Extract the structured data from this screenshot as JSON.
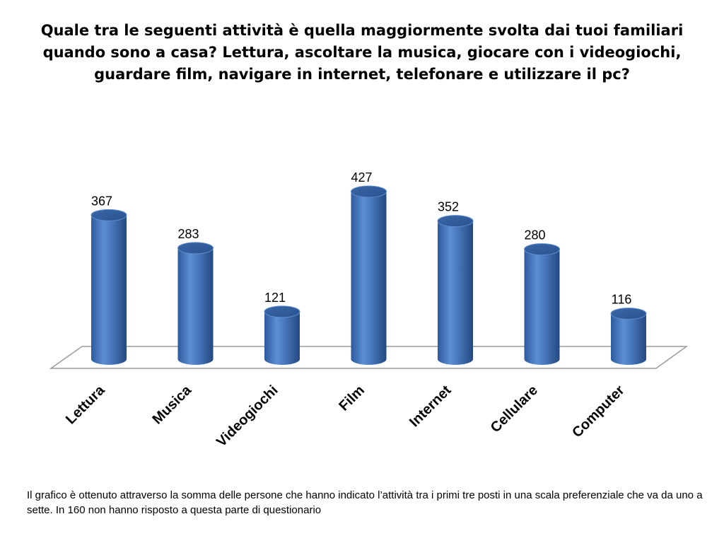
{
  "chart_data": {
    "type": "bar",
    "title": "Quale tra le seguenti attività è quella maggiormente svolta dai tuoi familiari quando sono a casa? Lettura, ascoltare la musica, giocare con i videogiochi, guardare film, navigare in internet, telefonare e utilizzare il pc?",
    "categories": [
      "Lettura",
      "Musica",
      "Videogiochi",
      "Film",
      "Internet",
      "Cellulare",
      "Computer"
    ],
    "values": [
      367,
      283,
      121,
      427,
      352,
      280,
      116
    ],
    "ylim": [
      0,
      427
    ],
    "grid": false,
    "legend": "none",
    "bar_color": "#4a7bc0",
    "bar_shape": "cylinder"
  },
  "footnote": "Il grafico è ottenuto attraverso la somma delle persone che hanno indicato l’attività tra i primi tre posti in una scala preferenziale che va da uno a sette. In 160 non hanno risposto a questa parte di questionario"
}
